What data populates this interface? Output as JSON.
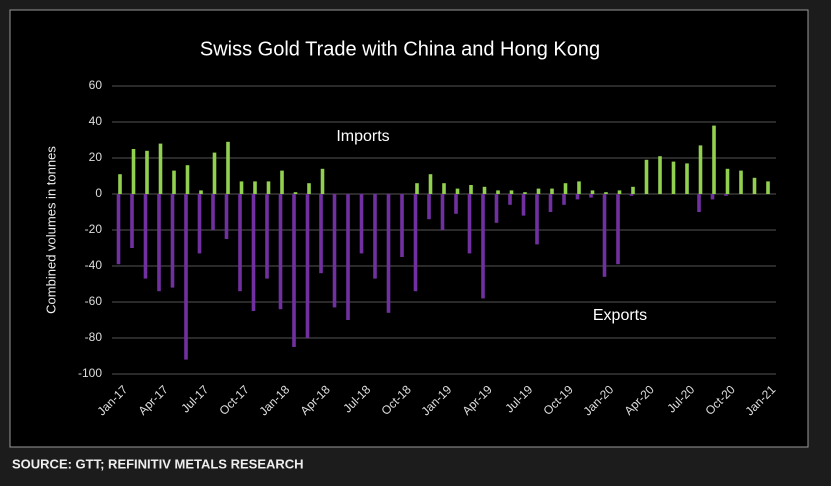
{
  "chart_data": {
    "type": "bar",
    "title": "Swiss Gold Trade with China and Hong Kong",
    "y_label": "Combined volumes in tonnes",
    "annotations": [
      "Imports",
      "Exports"
    ],
    "source": "SOURCE: GTT; REFINITIV METALS RESEARCH",
    "categories": [
      "Jan-17",
      null,
      null,
      "Apr-17",
      null,
      null,
      "Jul-17",
      null,
      null,
      "Oct-17",
      null,
      null,
      "Jan-18",
      null,
      null,
      "Apr-18",
      null,
      null,
      "Jul-18",
      null,
      null,
      "Oct-18",
      null,
      null,
      "Jan-19",
      null,
      null,
      "Apr-19",
      null,
      null,
      "Jul-19",
      null,
      null,
      "Oct-19",
      null,
      null,
      "Jan-20",
      null,
      null,
      "Apr-20",
      null,
      null,
      "Jul-20",
      null,
      null,
      "Oct-20",
      null,
      null,
      "Jan-21"
    ],
    "series": [
      {
        "name": "Imports",
        "color": "#92d050",
        "values": [
          11,
          25,
          24,
          28,
          13,
          16,
          2,
          23,
          29,
          7,
          7,
          7,
          13,
          1,
          6,
          14,
          0,
          0,
          0,
          0,
          0,
          0,
          6,
          11,
          6,
          3,
          5,
          4,
          2,
          2,
          1,
          3,
          3,
          6,
          7,
          2,
          1,
          2,
          4,
          19,
          21,
          18,
          17,
          27,
          38,
          14,
          13,
          9,
          7
        ]
      },
      {
        "name": "Exports",
        "color": "#7030a0",
        "values": [
          -39,
          -30,
          -47,
          -54,
          -52,
          -92,
          -33,
          -20,
          -25,
          -54,
          -65,
          -47,
          -64,
          -85,
          -80,
          -44,
          -63,
          -70,
          -33,
          -47,
          -66,
          -35,
          -54,
          -14,
          -20,
          -11,
          -33,
          -58,
          -16,
          -6,
          -12,
          -28,
          -10,
          -6,
          -3,
          -2,
          -46,
          -39,
          -1,
          0,
          0,
          0,
          0,
          -10,
          -3,
          -1,
          0,
          0,
          0
        ]
      }
    ],
    "ylim": [
      -100,
      60
    ],
    "yticks": [
      -100,
      -80,
      -60,
      -40,
      -20,
      0,
      20,
      40,
      60
    ],
    "grid": true
  }
}
